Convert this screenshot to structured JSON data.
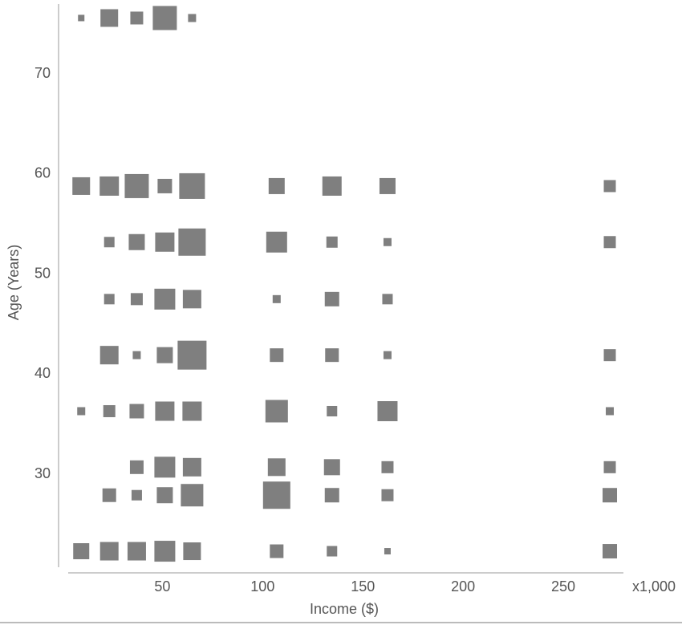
{
  "chart_data": {
    "type": "scatter",
    "marker": "square",
    "color": "#7f7f7f",
    "x_label": "Income ($)",
    "x_unit": "x1,000",
    "y_label": "Age (Years)",
    "xlim": [
      3,
      280
    ],
    "ylim": [
      20.7,
      77
    ],
    "xticks": [
      50,
      100,
      150,
      200,
      250
    ],
    "yticks": [
      30,
      40,
      50,
      60,
      70
    ],
    "grid": false,
    "x": [
      9.5,
      23.5,
      37.2,
      51.2,
      64.8,
      9.5,
      23.5,
      37.2,
      51.2,
      64.8,
      107,
      134.6,
      162.3,
      273.2,
      23.5,
      37.2,
      51.2,
      64.8,
      107,
      134.6,
      162.3,
      273.2,
      23.5,
      37.2,
      51.2,
      64.8,
      107,
      134.6,
      162.3,
      23.5,
      37.2,
      51.2,
      64.8,
      107,
      134.6,
      162.3,
      273.2,
      9.5,
      23.5,
      37.2,
      51.2,
      64.8,
      107,
      134.6,
      162.3,
      273.2,
      37.2,
      51.2,
      64.8,
      107,
      134.6,
      162.3,
      273.2,
      23.5,
      37.2,
      51.2,
      64.8,
      107,
      134.6,
      162.3,
      273.2,
      9.5,
      23.5,
      37.2,
      51.2,
      64.8,
      107,
      134.6,
      162.3,
      273.2
    ],
    "y": [
      75.6,
      75.6,
      75.6,
      75.6,
      75.6,
      58.8,
      58.8,
      58.8,
      58.8,
      58.8,
      58.8,
      58.8,
      58.8,
      58.8,
      53.2,
      53.2,
      53.2,
      53.2,
      53.2,
      53.2,
      53.2,
      53.2,
      47.5,
      47.5,
      47.5,
      47.5,
      47.5,
      47.5,
      47.5,
      41.9,
      41.9,
      41.9,
      41.9,
      41.9,
      41.9,
      41.9,
      41.9,
      36.3,
      36.3,
      36.3,
      36.3,
      36.3,
      36.3,
      36.3,
      36.3,
      36.3,
      30.7,
      30.7,
      30.7,
      30.7,
      30.7,
      30.7,
      30.7,
      27.9,
      27.9,
      27.9,
      27.9,
      27.9,
      27.9,
      27.9,
      27.9,
      22.3,
      22.3,
      22.3,
      22.3,
      22.3,
      22.3,
      22.3,
      22.3,
      22.3
    ],
    "sizes": [
      8,
      22,
      16,
      30,
      10,
      22,
      24,
      30,
      18,
      32,
      20,
      24,
      20,
      15,
      13,
      20,
      24,
      34,
      26,
      14,
      10,
      15,
      13,
      15,
      26,
      23,
      10,
      18,
      13,
      23,
      10,
      20,
      36,
      17,
      17,
      10,
      15,
      10,
      15,
      18,
      24,
      24,
      28,
      13,
      25,
      10,
      17,
      26,
      23,
      22,
      20,
      15,
      15,
      17,
      13,
      20,
      28,
      34,
      18,
      15,
      18,
      20,
      23,
      23,
      26,
      22,
      17,
      13,
      8,
      18
    ]
  }
}
